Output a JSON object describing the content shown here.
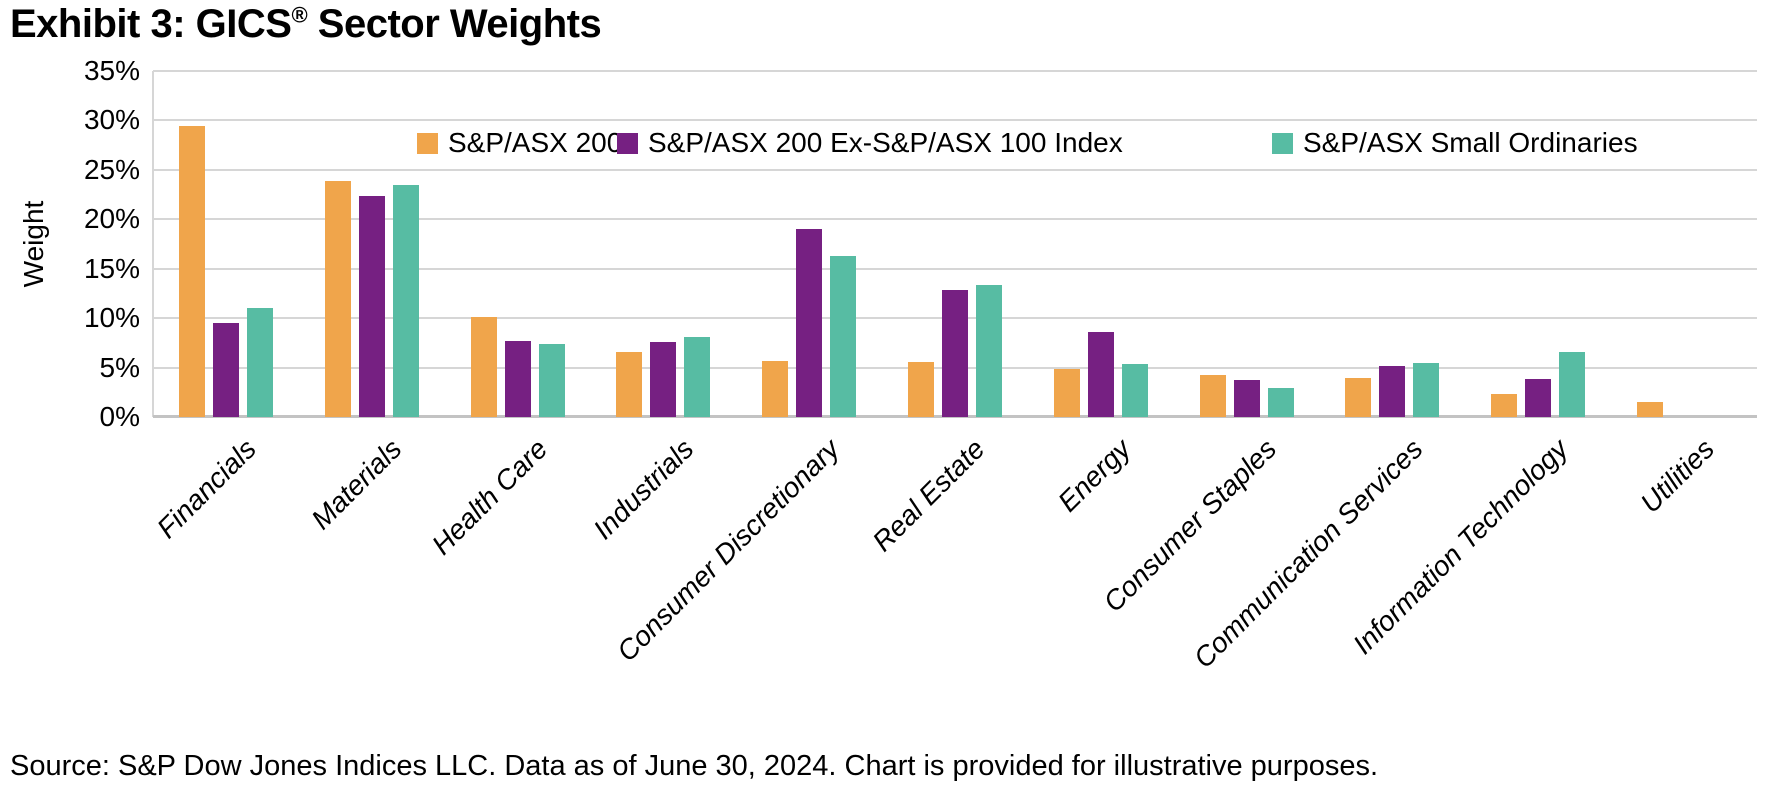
{
  "title": {
    "prefix": "Exhibit 3: GICS",
    "registered": "®",
    "suffix": " Sector Weights"
  },
  "source": "Source: S&P Dow Jones Indices LLC. Data as of June 30, 2024. Chart is provided for illustrative purposes.",
  "chart_data": {
    "type": "bar",
    "title": "Exhibit 3: GICS® Sector Weights",
    "xlabel": "",
    "ylabel": "Weight",
    "ylim": [
      0,
      35
    ],
    "ytick_step": 5,
    "ytick_labels": [
      "0%",
      "5%",
      "10%",
      "15%",
      "20%",
      "25%",
      "30%",
      "35%"
    ],
    "grid": true,
    "legend_position": "top-inside",
    "categories": [
      "Financials",
      "Materials",
      "Health Care",
      "Industrials",
      "Consumer Discretionary",
      "Real Estate",
      "Energy",
      "Consumer Staples",
      "Communication Services",
      "Information Technology",
      "Utilities"
    ],
    "series": [
      {
        "name": "S&P/ASX 200",
        "color": "#F0A54B",
        "values": [
          29.4,
          23.9,
          10.1,
          6.6,
          5.7,
          5.6,
          4.9,
          4.2,
          3.9,
          2.3,
          1.5
        ]
      },
      {
        "name": "S&P/ASX 200 Ex-S&P/ASX 100 Index",
        "color": "#762082",
        "values": [
          9.5,
          22.4,
          7.7,
          7.6,
          19.0,
          12.8,
          8.6,
          3.7,
          5.2,
          3.8,
          0
        ]
      },
      {
        "name": "S&P/ASX Small Ordinaries",
        "color": "#57BCA3",
        "values": [
          11.0,
          23.5,
          7.4,
          8.1,
          16.3,
          13.4,
          5.4,
          2.9,
          5.5,
          6.6,
          0
        ]
      }
    ]
  }
}
